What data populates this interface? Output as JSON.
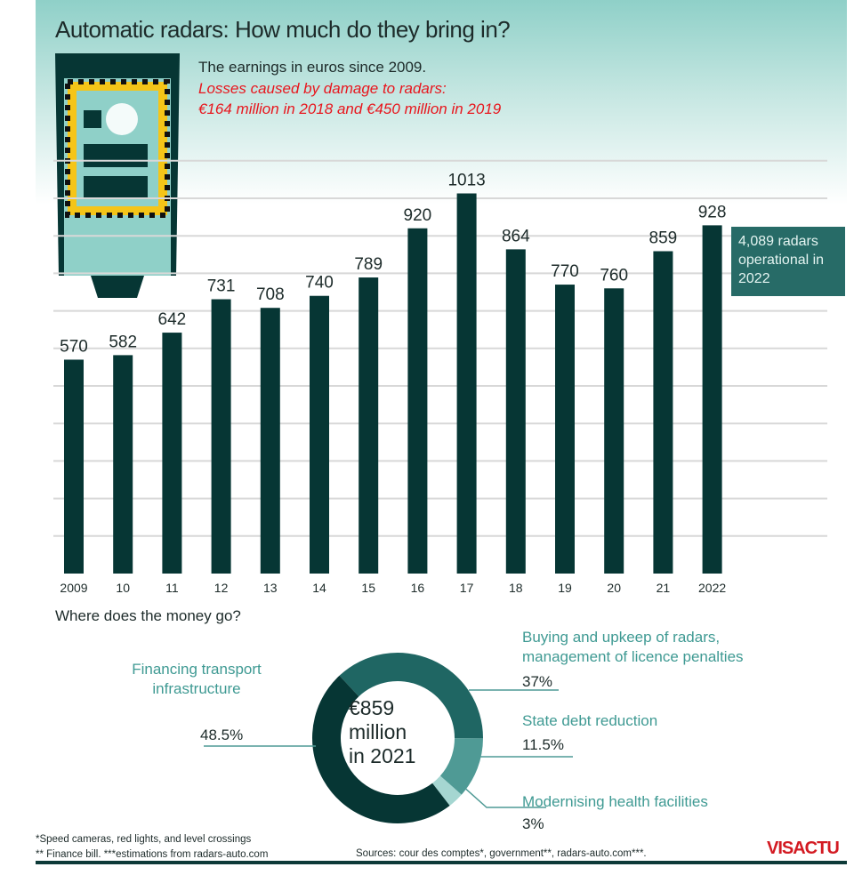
{
  "title": "Automatic radars: How much do they bring in?",
  "subtitle": "The earnings in euros since 2009.",
  "losses_line1": "Losses caused by damage to radars:",
  "losses_line2": "€164 million in 2018 and €450 million in 2019",
  "note": "4,089 radars operational in 2022",
  "colors": {
    "bar": "#063634",
    "accent": "#276b67",
    "red": "#e8161d",
    "grid": "#d8d8d8"
  },
  "chart_data": [
    {
      "type": "bar",
      "categories": [
        "2009",
        "10",
        "11",
        "12",
        "13",
        "14",
        "15",
        "16",
        "17",
        "18",
        "19",
        "20",
        "21",
        "2022"
      ],
      "values": [
        570,
        582,
        642,
        731,
        708,
        740,
        789,
        920,
        1013,
        864,
        770,
        760,
        859,
        928
      ],
      "ylim": [
        0,
        1100
      ],
      "grid": true
    },
    {
      "type": "pie",
      "donut": true,
      "title": "Where does the money go?",
      "center_label": [
        "€859",
        "million",
        "in 2021"
      ],
      "slices": [
        {
          "label": "Buying and upkeep of radars, management of licence penalties",
          "value": 37,
          "display": "37%",
          "color": "#1f6663"
        },
        {
          "label": "State debt reduction",
          "value": 11.5,
          "display": "11.5%",
          "color": "#4f9a95"
        },
        {
          "label": "Modernising health facilities",
          "value": 3,
          "display": "3%",
          "color": "#a5d6d1"
        },
        {
          "label": "Financing transport infrastructure",
          "value": 48.5,
          "display": "48.5%",
          "color": "#063634"
        }
      ]
    }
  ],
  "footnote1": "*Speed cameras, red lights, and level crossings",
  "footnote2": "** Finance bill. ***estimations from radars-auto.com",
  "sources": "Sources: cour des comptes*, government**, radars-auto.com***.",
  "logo": "VISACTU"
}
